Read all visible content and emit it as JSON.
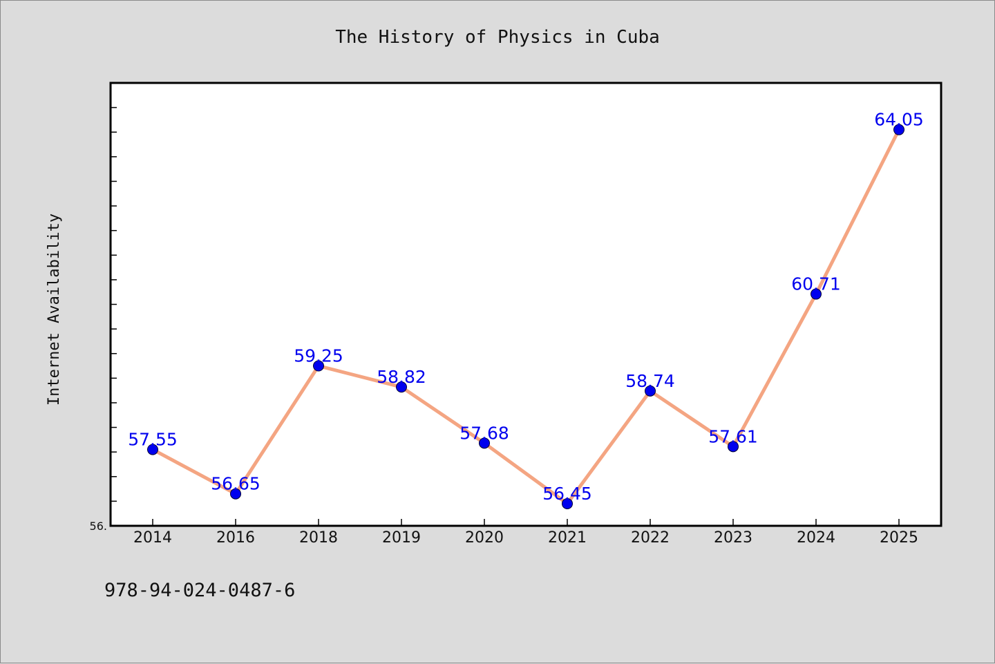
{
  "chart_data": {
    "type": "line",
    "title": "The History of Physics in Cuba",
    "xlabel": "",
    "ylabel": "Internet Availability",
    "categories": [
      "2014",
      "2016",
      "2018",
      "2019",
      "2020",
      "2021",
      "2022",
      "2023",
      "2024",
      "2025"
    ],
    "series": [
      {
        "values": [
          57.55,
          56.65,
          59.25,
          58.82,
          57.68,
          56.45,
          58.74,
          57.61,
          60.71,
          64.05
        ],
        "data_labels": [
          "57.55",
          "56.65",
          "59.25",
          "58.82",
          "57.68",
          "56.45",
          "58.74",
          "57.61",
          "60.71",
          "64.05"
        ]
      }
    ],
    "ylim": [
      56.0,
      65.0
    ],
    "y_min_label": "56.",
    "grid": false,
    "legend": "none",
    "colors": {
      "line": "#f4a582",
      "marker": "#0000ee",
      "data_label": "#0000ee",
      "plot_background": "#ffffff",
      "page_background": "#dcdcdc"
    }
  },
  "footer": {
    "isbn": "978-94-024-0487-6"
  }
}
